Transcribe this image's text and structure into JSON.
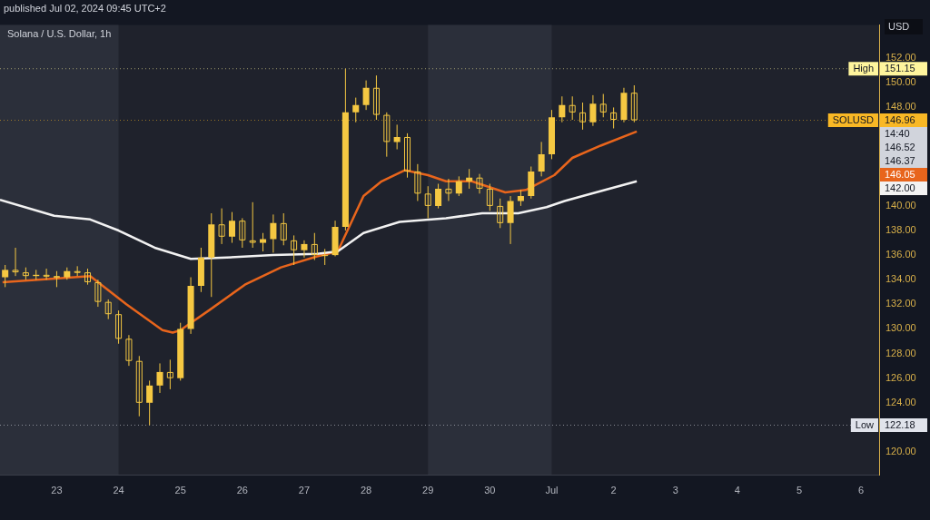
{
  "chart_data": {
    "type": "candlestick",
    "title": "Solana / U.S. Dollar, 1h",
    "subtitle": "published Jul 02, 2024 09:45 UTC+2",
    "ylabel": "USD",
    "color": "#f5c842",
    "x": [
      "2024-06-22T04:00",
      "2024-06-22T08:00",
      "2024-06-22T12:00",
      "2024-06-22T16:00",
      "2024-06-22T20:00",
      "2024-06-23T00:00",
      "2024-06-23T04:00",
      "2024-06-23T08:00",
      "2024-06-23T12:00",
      "2024-06-23T16:00",
      "2024-06-23T20:00",
      "2024-06-24T00:00",
      "2024-06-24T04:00",
      "2024-06-24T08:00",
      "2024-06-24T12:00",
      "2024-06-24T16:00",
      "2024-06-24T20:00",
      "2024-06-25T00:00",
      "2024-06-25T04:00",
      "2024-06-25T08:00",
      "2024-06-25T12:00",
      "2024-06-25T16:00",
      "2024-06-25T20:00",
      "2024-06-26T00:00",
      "2024-06-26T04:00",
      "2024-06-26T08:00",
      "2024-06-26T12:00",
      "2024-06-26T16:00",
      "2024-06-26T20:00",
      "2024-06-27T00:00",
      "2024-06-27T04:00",
      "2024-06-27T08:00",
      "2024-06-27T12:00",
      "2024-06-27T16:00",
      "2024-06-27T20:00",
      "2024-06-28T00:00",
      "2024-06-28T04:00",
      "2024-06-28T08:00",
      "2024-06-28T12:00",
      "2024-06-28T16:00",
      "2024-06-28T20:00",
      "2024-06-29T00:00",
      "2024-06-29T04:00",
      "2024-06-29T08:00",
      "2024-06-29T12:00",
      "2024-06-29T16:00",
      "2024-06-29T20:00",
      "2024-06-30T00:00",
      "2024-06-30T04:00",
      "2024-06-30T08:00",
      "2024-06-30T12:00",
      "2024-06-30T16:00",
      "2024-06-30T20:00",
      "2024-07-01T00:00",
      "2024-07-01T04:00",
      "2024-07-01T08:00",
      "2024-07-01T12:00",
      "2024-07-01T16:00",
      "2024-07-01T20:00",
      "2024-07-02T00:00",
      "2024-07-02T04:00",
      "2024-07-02T08:00"
    ],
    "ohlc": [
      [
        134.2,
        135.2,
        133.4,
        134.8
      ],
      [
        134.8,
        136.6,
        134.3,
        134.6
      ],
      [
        134.6,
        135.0,
        134.0,
        134.3
      ],
      [
        134.3,
        134.8,
        134.0,
        134.4
      ],
      [
        134.4,
        134.9,
        134.0,
        134.3
      ],
      [
        134.3,
        134.7,
        133.4,
        134.2
      ],
      [
        134.2,
        135.0,
        134.0,
        134.7
      ],
      [
        134.7,
        135.1,
        134.3,
        134.6
      ],
      [
        134.6,
        134.9,
        133.6,
        133.8
      ],
      [
        133.8,
        134.0,
        131.8,
        132.2
      ],
      [
        132.2,
        132.4,
        130.8,
        131.2
      ],
      [
        131.2,
        131.5,
        128.8,
        129.2
      ],
      [
        129.2,
        129.5,
        127.0,
        127.4
      ],
      [
        127.4,
        127.8,
        122.9,
        124.0
      ],
      [
        124.0,
        125.8,
        122.18,
        125.4
      ],
      [
        125.4,
        127.2,
        124.8,
        126.5
      ],
      [
        126.5,
        127.5,
        125.1,
        126.0
      ],
      [
        126.0,
        130.5,
        125.8,
        130.0
      ],
      [
        130.0,
        134.2,
        129.6,
        133.5
      ],
      [
        133.5,
        136.6,
        133.0,
        135.8
      ],
      [
        135.8,
        139.4,
        132.6,
        138.5
      ],
      [
        138.5,
        139.8,
        136.9,
        137.5
      ],
      [
        137.5,
        139.5,
        137.0,
        138.8
      ],
      [
        138.8,
        139.0,
        136.6,
        137.2
      ],
      [
        137.2,
        140.3,
        136.6,
        137.0
      ],
      [
        137.0,
        137.8,
        136.3,
        137.3
      ],
      [
        137.3,
        139.3,
        136.2,
        138.6
      ],
      [
        138.6,
        139.4,
        136.8,
        137.2
      ],
      [
        137.2,
        137.6,
        135.2,
        136.4
      ],
      [
        136.4,
        137.2,
        135.8,
        136.9
      ],
      [
        136.9,
        137.8,
        135.6,
        136.0
      ],
      [
        136.0,
        136.5,
        135.2,
        136.0
      ],
      [
        136.0,
        138.8,
        135.9,
        138.3
      ],
      [
        138.3,
        151.15,
        138.0,
        147.6
      ],
      [
        147.6,
        148.8,
        146.8,
        148.2
      ],
      [
        148.2,
        150.2,
        147.8,
        149.6
      ],
      [
        149.6,
        150.6,
        147.0,
        147.4
      ],
      [
        147.4,
        147.6,
        144.0,
        145.2
      ],
      [
        145.2,
        146.6,
        144.6,
        145.6
      ],
      [
        145.6,
        145.9,
        142.3,
        142.8
      ],
      [
        142.8,
        143.4,
        140.4,
        141.0
      ],
      [
        141.0,
        141.6,
        139.0,
        140.0
      ],
      [
        140.0,
        141.8,
        139.8,
        141.4
      ],
      [
        141.4,
        142.2,
        140.4,
        141.0
      ],
      [
        141.0,
        142.4,
        140.8,
        142.0
      ],
      [
        142.0,
        143.0,
        141.4,
        142.3
      ],
      [
        142.3,
        142.6,
        141.0,
        141.4
      ],
      [
        141.4,
        141.8,
        139.6,
        140.0
      ],
      [
        140.0,
        140.6,
        138.2,
        138.6
      ],
      [
        138.6,
        140.8,
        136.9,
        140.4
      ],
      [
        140.4,
        141.3,
        140.0,
        140.8
      ],
      [
        140.8,
        143.2,
        140.6,
        142.8
      ],
      [
        142.8,
        145.2,
        142.4,
        144.2
      ],
      [
        144.2,
        147.8,
        143.8,
        147.2
      ],
      [
        147.2,
        148.9,
        146.8,
        148.2
      ],
      [
        148.2,
        148.9,
        147.0,
        147.6
      ],
      [
        147.6,
        148.4,
        146.2,
        146.8
      ],
      [
        146.8,
        149.0,
        146.5,
        148.3
      ],
      [
        148.3,
        149.1,
        147.2,
        147.6
      ],
      [
        147.6,
        148.0,
        146.3,
        147.0
      ],
      [
        147.0,
        149.6,
        146.8,
        149.2
      ],
      [
        149.2,
        149.8,
        146.8,
        146.96
      ]
    ],
    "series": [
      {
        "type": "line",
        "color": "#f2f2f2",
        "x": [
          "2024-06-22T02:00",
          "2024-06-22T23:00",
          "2024-06-23T13:00",
          "2024-06-24T00:00",
          "2024-06-24T14:00",
          "2024-06-25T04:00",
          "2024-06-25T18:00",
          "2024-06-26T12:00",
          "2024-06-27T05:00",
          "2024-06-27T13:00",
          "2024-06-27T23:00",
          "2024-06-28T13:00",
          "2024-06-29T07:00",
          "2024-06-29T21:00",
          "2024-06-30T11:00",
          "2024-06-30T22:00",
          "2024-07-01T05:00",
          "2024-07-01T12:00",
          "2024-07-02T09:00"
        ],
        "values": [
          140.5,
          139.2,
          138.9,
          138.0,
          136.6,
          135.7,
          135.8,
          136.0,
          136.1,
          136.3,
          137.8,
          138.7,
          139.0,
          139.4,
          139.4,
          139.9,
          140.4,
          140.8,
          142.0
        ]
      },
      {
        "type": "line",
        "color": "#e8651c",
        "x": [
          "2024-06-22T03:00",
          "2024-06-23T13:00",
          "2024-06-24T03:00",
          "2024-06-24T17:00",
          "2024-06-24T21:00",
          "2024-06-25T00:00",
          "2024-06-25T11:00",
          "2024-06-26T01:00",
          "2024-06-26T15:00",
          "2024-06-27T05:00",
          "2024-06-27T13:00",
          "2024-06-27T23:00",
          "2024-06-28T06:00",
          "2024-06-28T15:00",
          "2024-06-29T00:00",
          "2024-06-29T07:00",
          "2024-06-29T17:00",
          "2024-06-30T06:00",
          "2024-06-30T14:00",
          "2024-07-01T01:00",
          "2024-07-01T08:00",
          "2024-07-01T19:00",
          "2024-07-02T09:00"
        ],
        "values": [
          133.8,
          134.3,
          132.0,
          129.9,
          129.7,
          129.9,
          131.5,
          133.6,
          135.0,
          135.9,
          136.3,
          140.8,
          142.0,
          142.9,
          142.5,
          142.0,
          142.0,
          141.1,
          141.3,
          142.5,
          143.9,
          144.9,
          146.05
        ]
      }
    ],
    "xlim": [
      "2024-06-22T02:00",
      "2024-07-06T07:00"
    ],
    "xticks": [
      {
        "value": "2024-06-23",
        "label": "23"
      },
      {
        "value": "2024-06-24",
        "label": "24"
      },
      {
        "value": "2024-06-25",
        "label": "25"
      },
      {
        "value": "2024-06-26",
        "label": "26"
      },
      {
        "value": "2024-06-27",
        "label": "27"
      },
      {
        "value": "2024-06-28",
        "label": "28"
      },
      {
        "value": "2024-06-29",
        "label": "29"
      },
      {
        "value": "2024-06-30",
        "label": "30"
      },
      {
        "value": "2024-07-01",
        "label": "Jul"
      },
      {
        "value": "2024-07-02",
        "label": "2"
      },
      {
        "value": "2024-07-03",
        "label": "3"
      },
      {
        "value": "2024-07-04",
        "label": "4"
      },
      {
        "value": "2024-07-05",
        "label": "5"
      },
      {
        "value": "2024-07-06",
        "label": "6"
      }
    ],
    "ylim": [
      118.1,
      154.7
    ],
    "yticks": [
      {
        "value": 120,
        "label": "120.00"
      },
      {
        "value": 124,
        "label": "124.00"
      },
      {
        "value": 126,
        "label": "126.00"
      },
      {
        "value": 128,
        "label": "128.00"
      },
      {
        "value": 130,
        "label": "130.00"
      },
      {
        "value": 132,
        "label": "132.00"
      },
      {
        "value": 134,
        "label": "134.00"
      },
      {
        "value": 136,
        "label": "136.00"
      },
      {
        "value": 138,
        "label": "138.00"
      },
      {
        "value": 140,
        "label": "140.00"
      },
      {
        "value": 148,
        "label": "148.00"
      },
      {
        "value": 150,
        "label": "150.00"
      },
      {
        "value": 152,
        "label": "152.00"
      }
    ],
    "bands": [
      {
        "axis": "x",
        "from": "2024-06-22T02:00",
        "to": "2024-06-24",
        "color": "#2b2f3a"
      },
      {
        "axis": "x",
        "from": "2024-06-29",
        "to": "2024-07-01",
        "color": "#2b2f3a"
      }
    ],
    "ref_lines": [
      {
        "axis": "y",
        "value": 151.15,
        "label": "High",
        "color": "#fff59d",
        "line_style": "dotted"
      },
      {
        "axis": "y",
        "value": 146.96,
        "label": "SOLUSD",
        "color": "#f9b825",
        "line_style": "dotted"
      },
      {
        "axis": "y",
        "value": 122.18,
        "label": "Low",
        "color": "#e0e3eb",
        "line_style": "dotted"
      }
    ],
    "annotations": [
      "151.15",
      "146.96",
      "14:40",
      "146.52",
      "146.37",
      "146.05",
      "142.00",
      "122.18"
    ]
  }
}
